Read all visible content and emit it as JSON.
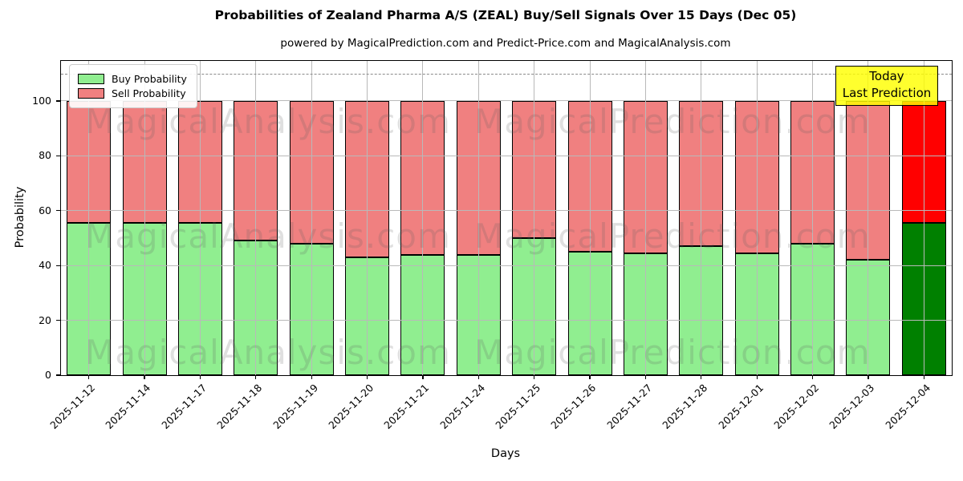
{
  "title": "Probabilities of Zealand Pharma A/S (ZEAL) Buy/Sell Signals Over 15 Days (Dec 05)",
  "subtitle": "powered by MagicalPrediction.com and Predict-Price.com and MagicalAnalysis.com",
  "legend": {
    "buy_label": "Buy Probability",
    "sell_label": "Sell Probability"
  },
  "annotation_box": {
    "line1": "Today",
    "line2": "Last Prediction"
  },
  "axes": {
    "xlabel": "Days",
    "ylabel": "Probability",
    "yticks": [
      0,
      20,
      40,
      60,
      80,
      100
    ]
  },
  "watermarks": [
    "MagicalAnalysis.com",
    "MagicalPrediction.com"
  ],
  "colors": {
    "buy": "#90EE90",
    "sell": "#F08080",
    "today_buy": "#008000",
    "today_sell": "#FF0000",
    "grid": "#b9b9b9",
    "dashed_line": "#8a8a8a",
    "annotation_bg": "#FFFF00"
  },
  "chart_data": {
    "type": "bar",
    "stacked": true,
    "title": "Probabilities of Zealand Pharma A/S (ZEAL) Buy/Sell Signals Over 15 Days (Dec 05)",
    "xlabel": "Days",
    "ylabel": "Probability",
    "ylim": [
      0,
      114.6
    ],
    "dashed_line_y": 110,
    "grid": true,
    "legend_position": "upper left",
    "categories": [
      "2025-11-12",
      "2025-11-14",
      "2025-11-17",
      "2025-11-18",
      "2025-11-19",
      "2025-11-20",
      "2025-11-21",
      "2025-11-24",
      "2025-11-25",
      "2025-11-26",
      "2025-11-27",
      "2025-11-28",
      "2025-12-01",
      "2025-12-02",
      "2025-12-03",
      "2025-12-04"
    ],
    "series": [
      {
        "name": "Buy Probability",
        "color": "#90EE90",
        "values": [
          55.5,
          55.5,
          55.5,
          49,
          48,
          43,
          44,
          44,
          50,
          45,
          44.5,
          47,
          44.5,
          48,
          42,
          55.5
        ]
      },
      {
        "name": "Sell Probability",
        "color": "#F08080",
        "values": [
          44.5,
          44.5,
          44.5,
          51,
          52,
          57,
          56,
          56,
          50,
          55,
          55.5,
          53,
          55.5,
          52,
          58,
          44.5
        ]
      }
    ],
    "today_index": 15,
    "today_colors": {
      "buy": "#008000",
      "sell": "#FF0000"
    }
  }
}
